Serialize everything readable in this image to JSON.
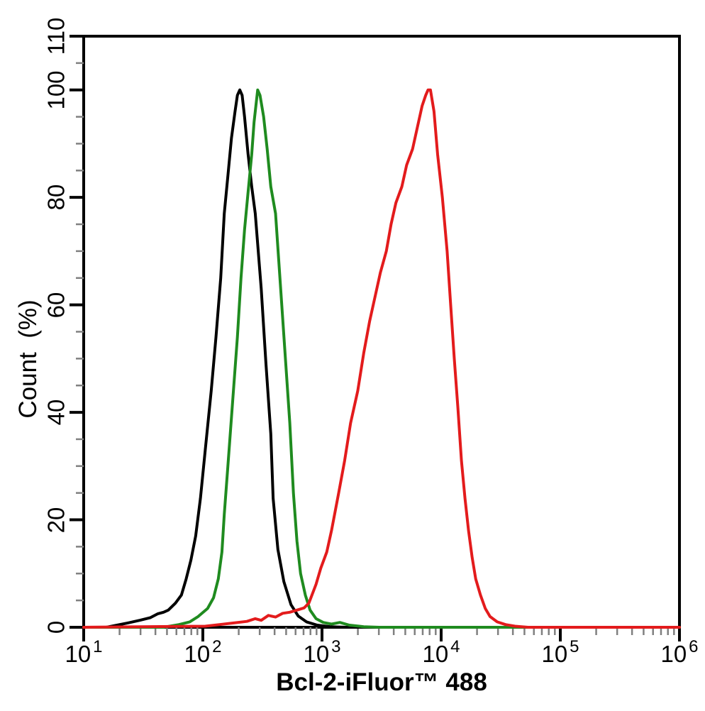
{
  "page": {
    "background": "#ffffff"
  },
  "chart_data": {
    "type": "line",
    "subtype": "flow-cytometry-histogram",
    "title": "",
    "xlabel": "Bcl-2-iFluor™ 488",
    "ylabel": "Count  (%)",
    "x_scale": "log10",
    "x_range_log": [
      1,
      6
    ],
    "ylim": [
      0,
      110
    ],
    "grid": false,
    "legend": "none",
    "axis_color": "#000000",
    "minor_tick_color": "#808080",
    "x_ticks": [
      {
        "base": "10",
        "exp": "1",
        "log": 1
      },
      {
        "base": "10",
        "exp": "2",
        "log": 2
      },
      {
        "base": "10",
        "exp": "3",
        "log": 3
      },
      {
        "base": "10",
        "exp": "4",
        "log": 4
      },
      {
        "base": "10",
        "exp": "5",
        "log": 5
      },
      {
        "base": "10",
        "exp": "6",
        "log": 6
      }
    ],
    "x_minor_mantissas": [
      2,
      3,
      4,
      5,
      6,
      7,
      8,
      9
    ],
    "y_ticks": [
      {
        "label": "0",
        "value": 0
      },
      {
        "label": "20",
        "value": 20
      },
      {
        "label": "40",
        "value": 40
      },
      {
        "label": "60",
        "value": 60
      },
      {
        "label": "80",
        "value": 80
      },
      {
        "label": "100",
        "value": 100
      },
      {
        "label": "110",
        "value": 110
      }
    ],
    "y_minor_step": 5,
    "series": [
      {
        "name": "black-curve",
        "color": "#000000",
        "peak_x_approx": 200,
        "peak_y": 100,
        "points": [
          [
            1.0,
            0
          ],
          [
            1.19,
            0
          ],
          [
            1.28,
            0.4
          ],
          [
            1.37,
            0.8
          ],
          [
            1.47,
            1.3
          ],
          [
            1.56,
            1.8
          ],
          [
            1.62,
            2.5
          ],
          [
            1.67,
            2.8
          ],
          [
            1.71,
            3.2
          ],
          [
            1.77,
            4.5
          ],
          [
            1.82,
            6
          ],
          [
            1.86,
            9
          ],
          [
            1.9,
            12.5
          ],
          [
            1.94,
            17
          ],
          [
            1.98,
            24
          ],
          [
            2.02,
            33
          ],
          [
            2.07,
            44
          ],
          [
            2.11,
            54
          ],
          [
            2.15,
            65
          ],
          [
            2.18,
            77
          ],
          [
            2.21,
            84
          ],
          [
            2.24,
            91
          ],
          [
            2.27,
            96
          ],
          [
            2.29,
            99
          ],
          [
            2.31,
            100
          ],
          [
            2.33,
            99
          ],
          [
            2.35,
            95
          ],
          [
            2.38,
            88
          ],
          [
            2.41,
            82
          ],
          [
            2.44,
            77
          ],
          [
            2.49,
            63
          ],
          [
            2.53,
            49
          ],
          [
            2.57,
            36
          ],
          [
            2.59,
            24
          ],
          [
            2.63,
            14.5
          ],
          [
            2.68,
            8.5
          ],
          [
            2.74,
            4.2
          ],
          [
            2.8,
            2.1
          ],
          [
            2.87,
            1.0
          ],
          [
            2.96,
            0.4
          ],
          [
            3.07,
            0.1
          ],
          [
            3.21,
            0
          ],
          [
            6.0,
            0
          ]
        ]
      },
      {
        "name": "green-curve",
        "color": "#1f8b1f",
        "peak_x_approx": 290,
        "peak_y": 100,
        "points": [
          [
            1.0,
            0
          ],
          [
            1.67,
            0
          ],
          [
            1.8,
            0.5
          ],
          [
            1.89,
            1.0
          ],
          [
            1.96,
            2.0
          ],
          [
            2.04,
            3.5
          ],
          [
            2.09,
            5.5
          ],
          [
            2.13,
            9
          ],
          [
            2.16,
            14
          ],
          [
            2.18,
            21
          ],
          [
            2.21,
            30
          ],
          [
            2.25,
            42
          ],
          [
            2.29,
            54
          ],
          [
            2.32,
            65
          ],
          [
            2.35,
            74
          ],
          [
            2.38,
            81
          ],
          [
            2.41,
            88
          ],
          [
            2.43,
            94
          ],
          [
            2.45,
            98
          ],
          [
            2.46,
            100
          ],
          [
            2.48,
            99
          ],
          [
            2.51,
            95
          ],
          [
            2.54,
            89
          ],
          [
            2.57,
            82
          ],
          [
            2.61,
            77
          ],
          [
            2.65,
            64
          ],
          [
            2.69,
            51
          ],
          [
            2.73,
            38
          ],
          [
            2.76,
            25
          ],
          [
            2.79,
            16
          ],
          [
            2.82,
            10
          ],
          [
            2.86,
            6
          ],
          [
            2.9,
            3.2
          ],
          [
            2.95,
            1.6
          ],
          [
            3.01,
            0.9
          ],
          [
            3.08,
            0.6
          ],
          [
            3.15,
            0.9
          ],
          [
            3.23,
            0.4
          ],
          [
            3.35,
            0.1
          ],
          [
            3.48,
            0
          ],
          [
            6.0,
            0
          ]
        ]
      },
      {
        "name": "red-curve",
        "color": "#e31b1c",
        "peak_x_approx": 8000,
        "peak_y": 100,
        "points": [
          [
            1.0,
            0
          ],
          [
            2.02,
            0.2
          ],
          [
            2.14,
            0.5
          ],
          [
            2.26,
            0.8
          ],
          [
            2.37,
            1.1
          ],
          [
            2.44,
            1.6
          ],
          [
            2.49,
            1.3
          ],
          [
            2.55,
            2.2
          ],
          [
            2.61,
            1.9
          ],
          [
            2.67,
            2.6
          ],
          [
            2.73,
            2.8
          ],
          [
            2.79,
            3.2
          ],
          [
            2.85,
            3.6
          ],
          [
            2.89,
            4.5
          ],
          [
            2.95,
            8
          ],
          [
            2.99,
            11
          ],
          [
            3.04,
            14
          ],
          [
            3.08,
            18
          ],
          [
            3.14,
            25
          ],
          [
            3.19,
            31
          ],
          [
            3.24,
            38
          ],
          [
            3.3,
            44
          ],
          [
            3.35,
            51
          ],
          [
            3.4,
            57
          ],
          [
            3.45,
            62
          ],
          [
            3.49,
            66
          ],
          [
            3.54,
            70
          ],
          [
            3.58,
            75
          ],
          [
            3.62,
            79
          ],
          [
            3.67,
            82
          ],
          [
            3.71,
            86
          ],
          [
            3.76,
            89
          ],
          [
            3.8,
            93
          ],
          [
            3.84,
            97
          ],
          [
            3.87,
            99
          ],
          [
            3.89,
            100
          ],
          [
            3.91,
            100
          ],
          [
            3.94,
            96
          ],
          [
            3.97,
            88
          ],
          [
            4.01,
            80
          ],
          [
            4.05,
            70
          ],
          [
            4.08,
            60
          ],
          [
            4.11,
            50
          ],
          [
            4.14,
            41
          ],
          [
            4.17,
            31
          ],
          [
            4.2,
            24
          ],
          [
            4.23,
            18
          ],
          [
            4.26,
            13
          ],
          [
            4.29,
            9
          ],
          [
            4.33,
            6
          ],
          [
            4.37,
            3.5
          ],
          [
            4.41,
            2
          ],
          [
            4.47,
            1
          ],
          [
            4.54,
            0.5
          ],
          [
            4.62,
            0.2
          ],
          [
            4.73,
            0
          ],
          [
            6.0,
            0
          ]
        ]
      }
    ]
  }
}
